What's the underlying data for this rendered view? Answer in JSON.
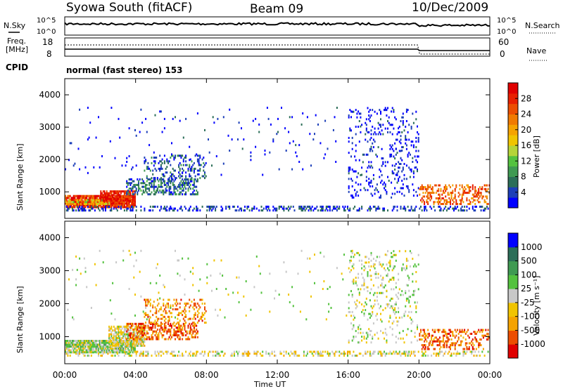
{
  "header": {
    "station": "Syowa South (fitACF)",
    "beam": "Beam 09",
    "date": "10/Dec/2009"
  },
  "top_panels": {
    "nsky_label": "N.Sky",
    "nsearch_label": "N.Search",
    "sky_ticks": [
      "10^5",
      "10^0"
    ],
    "search_ticks": [
      "10^5",
      "10^0"
    ],
    "freq_label_1": "Freq.",
    "freq_label_2": "[MHz]",
    "freq_ticks": [
      "18",
      "8"
    ],
    "nave_label": "Nave",
    "nave_ticks": [
      "60",
      "0"
    ],
    "cpid_label": "CPID",
    "cpid_text": "normal (fast stereo) 153"
  },
  "chart_data": [
    {
      "type": "heatmap",
      "name": "power",
      "ylabel": "Slant Range [km]",
      "yticks": [
        "4000",
        "3000",
        "2000",
        "1000"
      ],
      "ylim": [
        180,
        4500
      ],
      "x_range_hours": [
        0,
        24
      ],
      "colorbar": {
        "label": "Power [dB]",
        "ticks": [
          "28",
          "24",
          "20",
          "16",
          "12",
          "8",
          "4"
        ],
        "colors": [
          "#0000ff",
          "#1d3fb8",
          "#2b6e58",
          "#3f9a52",
          "#54c23f",
          "#b5d438",
          "#f0c400",
          "#f5a300",
          "#f07a00",
          "#ec4e00",
          "#e82000",
          "#e00000"
        ]
      },
      "regions": [
        {
          "t0": 0.0,
          "t1": 4.0,
          "r0": 500,
          "r1": 900,
          "level": 0.85,
          "density": 0.9
        },
        {
          "t0": 0.0,
          "t1": 2.5,
          "r0": 600,
          "r1": 750,
          "level": 0.55,
          "density": 0.6
        },
        {
          "t0": 2.0,
          "t1": 4.0,
          "r0": 700,
          "r1": 1000,
          "level": 0.9,
          "density": 0.8
        },
        {
          "t0": 3.5,
          "t1": 7.5,
          "r0": 900,
          "r1": 1400,
          "level": 0.2,
          "density": 0.5
        },
        {
          "t0": 4.5,
          "t1": 8.0,
          "r0": 1400,
          "r1": 2100,
          "level": 0.15,
          "density": 0.25
        },
        {
          "t0": 0.0,
          "t1": 24.0,
          "r0": 400,
          "r1": 520,
          "level": 0.1,
          "density": 0.35
        },
        {
          "t0": 16.0,
          "t1": 20.0,
          "r0": 800,
          "r1": 3600,
          "level": 0.05,
          "density": 0.12
        },
        {
          "t0": 20.0,
          "t1": 24.0,
          "r0": 600,
          "r1": 1200,
          "level": 0.75,
          "density": 0.35
        },
        {
          "t0": 0.0,
          "t1": 20.0,
          "r0": 1500,
          "r1": 3600,
          "level": 0.05,
          "density": 0.015
        }
      ]
    },
    {
      "type": "heatmap",
      "name": "velocity",
      "ylabel": "Slant Range [km]",
      "yticks": [
        "4000",
        "3000",
        "2000",
        "1000"
      ],
      "ylim": [
        180,
        4500
      ],
      "x_range_hours": [
        0,
        24
      ],
      "xlabel": "Time UT",
      "xticks": [
        "00:00",
        "04:00",
        "08:00",
        "12:00",
        "16:00",
        "20:00",
        "00:00"
      ],
      "colorbar": {
        "label": "Velocity [m s⁻¹]",
        "ticks": [
          "1000",
          "500",
          "100",
          "25",
          "-25",
          "-100",
          "-500",
          "-1000"
        ],
        "colors": [
          "#e00000",
          "#ec4e00",
          "#f5a300",
          "#f0c400",
          "#c8c8c8",
          "#54c23f",
          "#3f9a52",
          "#2b6e58",
          "#0000ff"
        ]
      },
      "regions": [
        {
          "t0": 0.0,
          "t1": 4.0,
          "r0": 500,
          "r1": 900,
          "level": 0.55,
          "density": 0.9
        },
        {
          "t0": 2.5,
          "t1": 4.5,
          "r0": 700,
          "r1": 1300,
          "level": 0.45,
          "density": 0.7
        },
        {
          "t0": 3.5,
          "t1": 7.5,
          "r0": 900,
          "r1": 1400,
          "level": 0.2,
          "density": 0.5
        },
        {
          "t0": 4.5,
          "t1": 8.0,
          "r0": 1400,
          "r1": 2100,
          "level": 0.25,
          "density": 0.25
        },
        {
          "t0": 0.0,
          "t1": 24.0,
          "r0": 400,
          "r1": 520,
          "level": 0.45,
          "density": 0.35
        },
        {
          "t0": 16.0,
          "t1": 20.0,
          "r0": 800,
          "r1": 3600,
          "level": 0.5,
          "density": 0.12
        },
        {
          "t0": 20.0,
          "t1": 24.0,
          "r0": 600,
          "r1": 1200,
          "level": 0.2,
          "density": 0.35
        },
        {
          "t0": 0.0,
          "t1": 20.0,
          "r0": 1500,
          "r1": 3600,
          "level": 0.5,
          "density": 0.015
        }
      ]
    }
  ]
}
